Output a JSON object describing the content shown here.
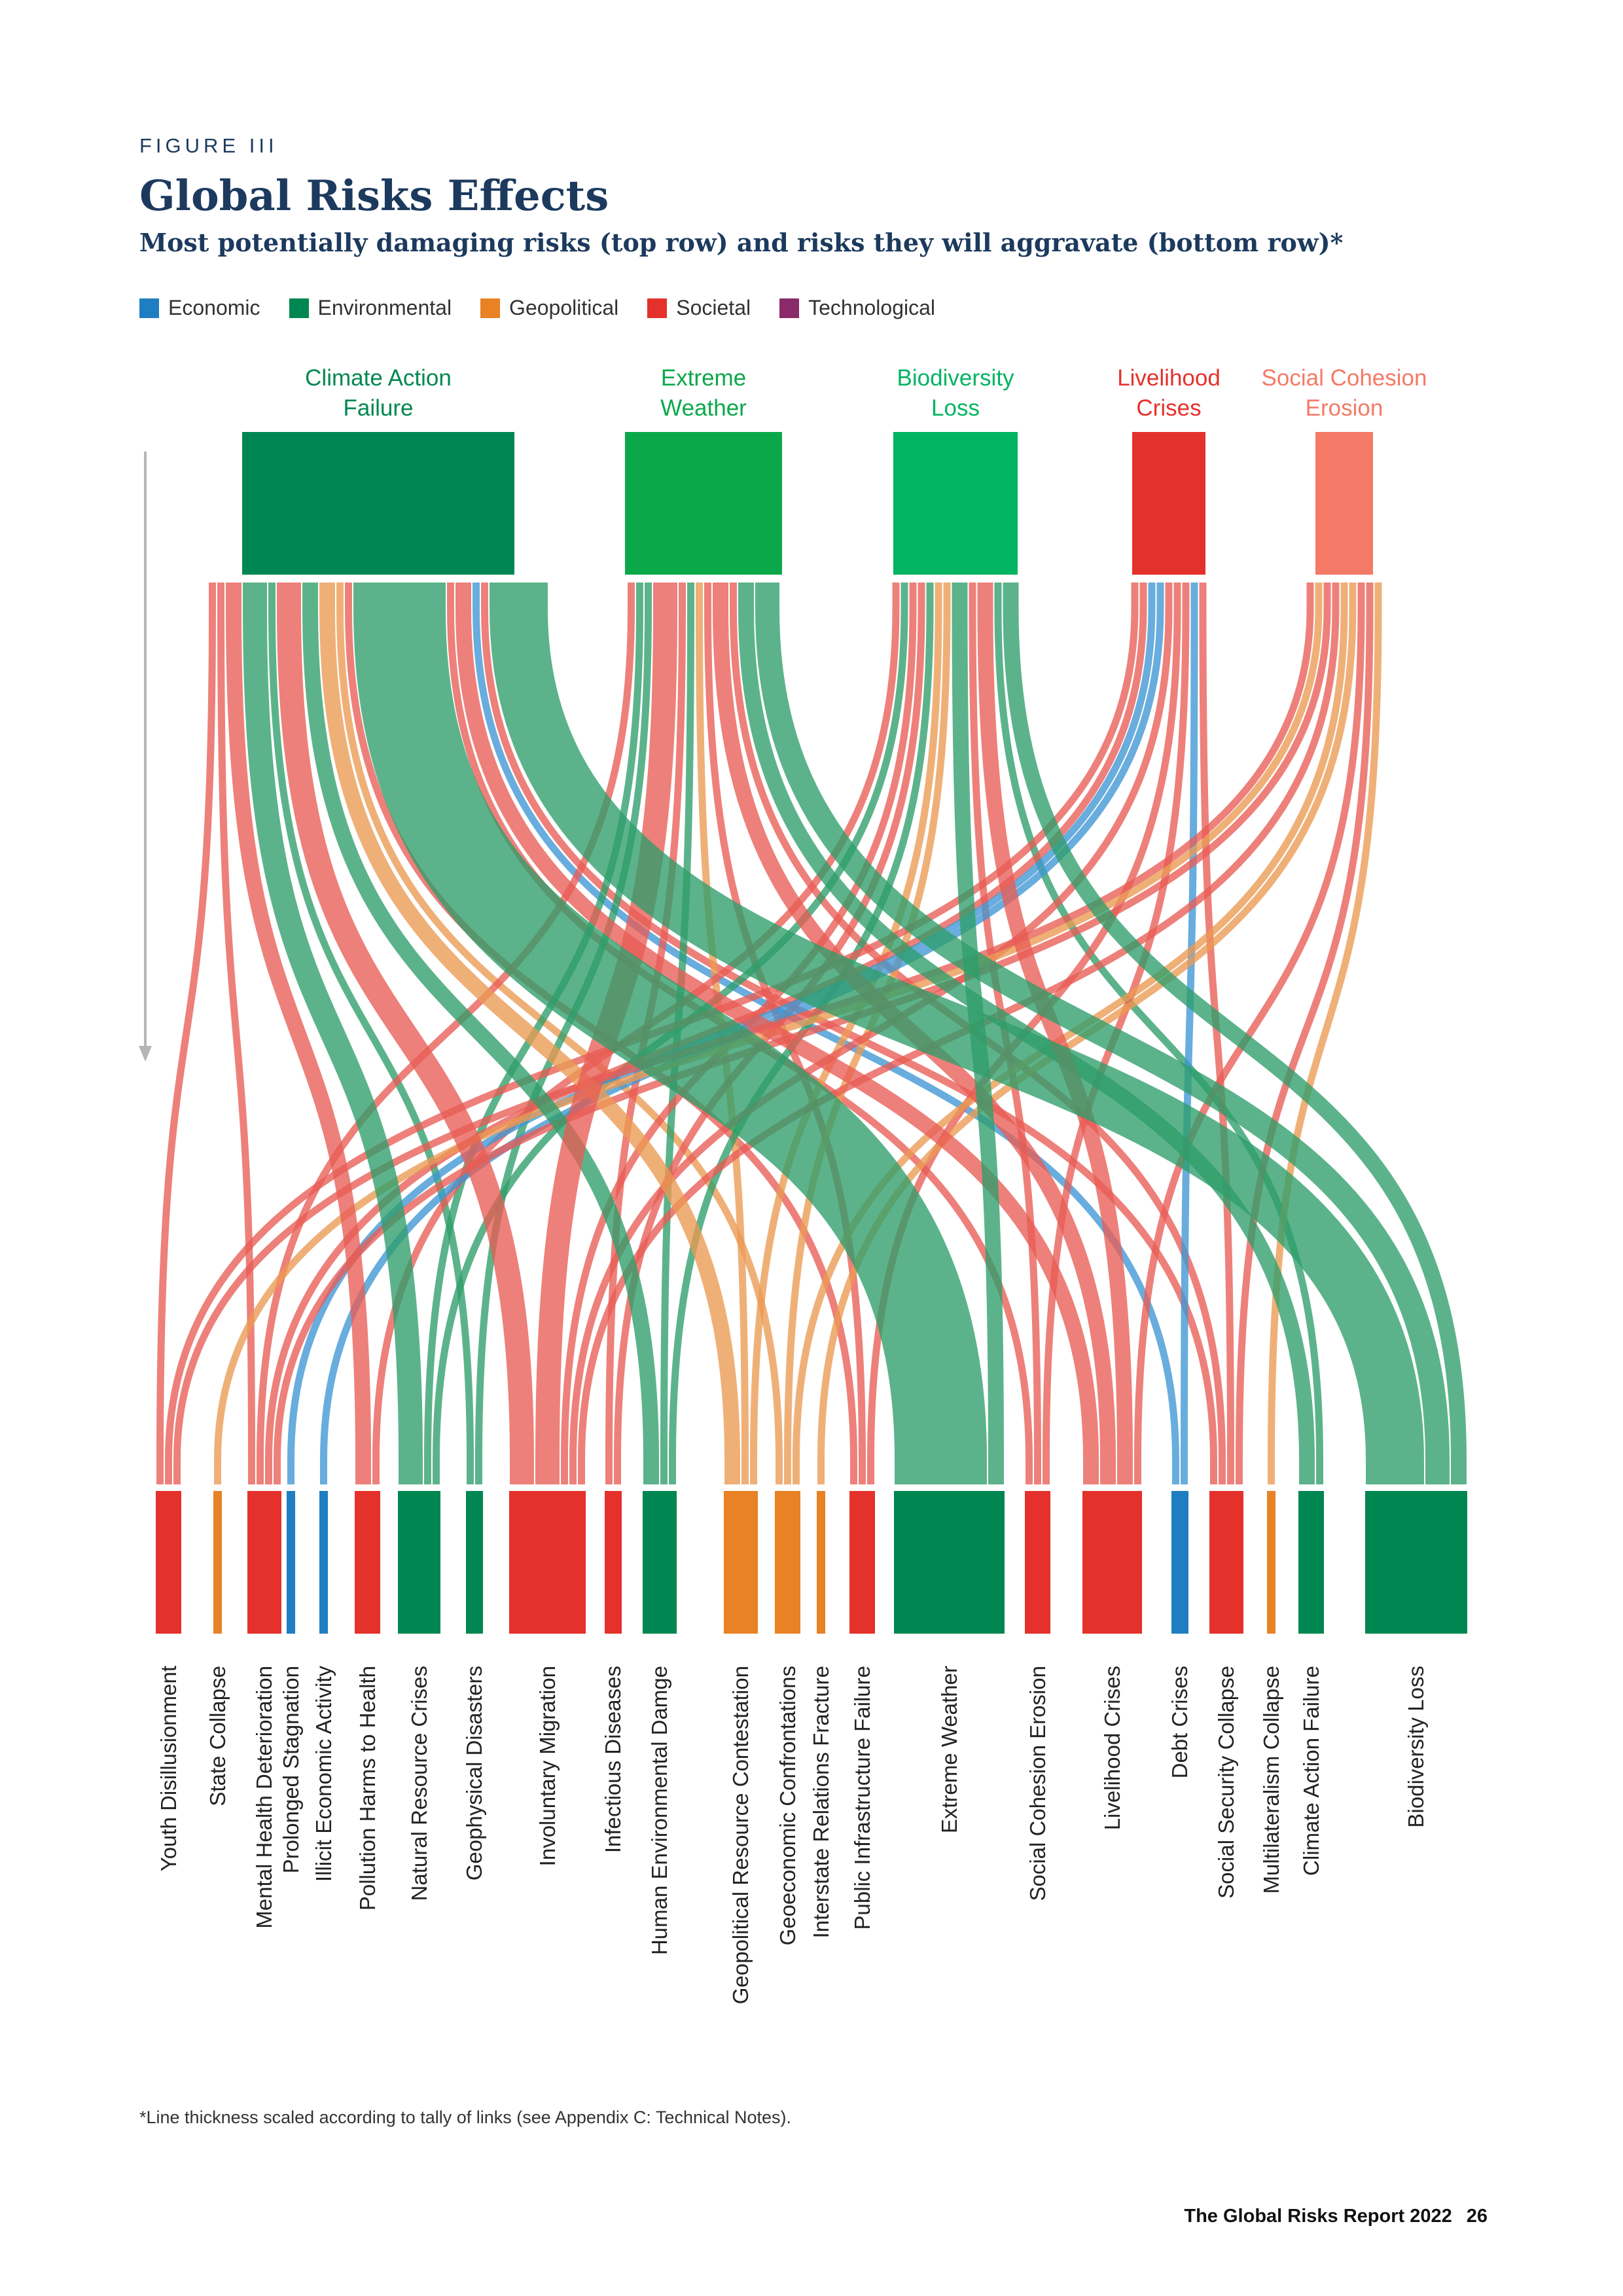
{
  "figure_label": "FIGURE III",
  "title": "Global Risks Effects",
  "subtitle": "Most potentially damaging risks (top row) and risks they will aggravate (bottom row)*",
  "legend": [
    {
      "label": "Economic",
      "color": "#1f7ec1"
    },
    {
      "label": "Environmental",
      "color": "#008751"
    },
    {
      "label": "Geopolitical",
      "color": "#e98125"
    },
    {
      "label": "Societal",
      "color": "#e4312b"
    },
    {
      "label": "Technological",
      "color": "#8a2a6a"
    }
  ],
  "colors": {
    "Economic": "#1f7ec1",
    "Environmental": "#008751",
    "Geopolitical": "#e98125",
    "Societal": "#e4312b",
    "Technological": "#8a2a6a"
  },
  "top_nodes": [
    {
      "id": "T-CAF",
      "label": "Climate Action\nFailure",
      "color": "#008751"
    },
    {
      "id": "T-EW",
      "label": "Extreme\nWeather",
      "color": "#0ba84a"
    },
    {
      "id": "T-BL",
      "label": "Biodiversity\nLoss",
      "color": "#00b462"
    },
    {
      "id": "T-LC",
      "label": "Livelihood\nCrises",
      "color": "#e4312b"
    },
    {
      "id": "T-SCE",
      "label": "Social Cohesion\nErosion",
      "color": "#f47a67"
    }
  ],
  "bottom_nodes": [
    {
      "id": "YD",
      "label": "Youth Disillusionment",
      "category": "Societal"
    },
    {
      "id": "SC",
      "label": "State Collapse",
      "category": "Geopolitical"
    },
    {
      "id": "MHD",
      "label": "Mental Health Deterioration",
      "category": "Societal"
    },
    {
      "id": "PS",
      "label": "Prolonged Stagnation",
      "category": "Economic"
    },
    {
      "id": "IEA",
      "label": "Illicit Economic Activity",
      "category": "Economic"
    },
    {
      "id": "PHH",
      "label": "Pollution Harms to Health",
      "category": "Societal"
    },
    {
      "id": "NRC",
      "label": "Natural Resource Crises",
      "category": "Environmental"
    },
    {
      "id": "GD",
      "label": "Geophysical Disasters",
      "category": "Environmental"
    },
    {
      "id": "IM",
      "label": "Involuntary Migration",
      "category": "Societal"
    },
    {
      "id": "ID",
      "label": "Infectious Diseases",
      "category": "Societal"
    },
    {
      "id": "HED",
      "label": "Human Environmental Damge",
      "category": "Environmental"
    },
    {
      "id": "GRC",
      "label": "Geopolitical Resource Contestation",
      "category": "Geopolitical"
    },
    {
      "id": "GC",
      "label": "Geoeconomic Confrontations",
      "category": "Geopolitical"
    },
    {
      "id": "IRF",
      "label": "Interstate Relations Fracture",
      "category": "Geopolitical"
    },
    {
      "id": "PIF",
      "label": "Public Infrastructure Failure",
      "category": "Societal"
    },
    {
      "id": "EW",
      "label": "Extreme Weather",
      "category": "Environmental"
    },
    {
      "id": "SCE",
      "label": "Social Cohesion Erosion",
      "category": "Societal"
    },
    {
      "id": "LC",
      "label": "Livelihood Crises",
      "category": "Societal"
    },
    {
      "id": "DC",
      "label": "Debt Crises",
      "category": "Economic"
    },
    {
      "id": "SSC",
      "label": "Social Security Collapse",
      "category": "Societal"
    },
    {
      "id": "MC",
      "label": "Multilateralism Collapse",
      "category": "Geopolitical"
    },
    {
      "id": "CAF",
      "label": "Climate Action Failure",
      "category": "Environmental"
    },
    {
      "id": "BL",
      "label": "Biodiversity Loss",
      "category": "Environmental"
    }
  ],
  "links": [
    {
      "source": "T-CAF",
      "target": "YD",
      "value": 1,
      "category": "Societal"
    },
    {
      "source": "T-CAF",
      "target": "MHD",
      "value": 1,
      "category": "Societal"
    },
    {
      "source": "T-CAF",
      "target": "PHH",
      "value": 2,
      "category": "Societal"
    },
    {
      "source": "T-CAF",
      "target": "NRC",
      "value": 3,
      "category": "Environmental"
    },
    {
      "source": "T-CAF",
      "target": "GD",
      "value": 1,
      "category": "Environmental"
    },
    {
      "source": "T-CAF",
      "target": "IM",
      "value": 3,
      "category": "Societal"
    },
    {
      "source": "T-CAF",
      "target": "HED",
      "value": 2,
      "category": "Environmental"
    },
    {
      "source": "T-CAF",
      "target": "GRC",
      "value": 2,
      "category": "Geopolitical"
    },
    {
      "source": "T-CAF",
      "target": "GC",
      "value": 1,
      "category": "Geopolitical"
    },
    {
      "source": "T-CAF",
      "target": "PIF",
      "value": 1,
      "category": "Societal"
    },
    {
      "source": "T-CAF",
      "target": "EW",
      "value": 11,
      "category": "Environmental"
    },
    {
      "source": "T-CAF",
      "target": "SCE",
      "value": 1,
      "category": "Societal"
    },
    {
      "source": "T-CAF",
      "target": "LC",
      "value": 2,
      "category": "Societal"
    },
    {
      "source": "T-CAF",
      "target": "DC",
      "value": 1,
      "category": "Economic"
    },
    {
      "source": "T-CAF",
      "target": "SSC",
      "value": 1,
      "category": "Societal"
    },
    {
      "source": "T-CAF",
      "target": "BL",
      "value": 7,
      "category": "Environmental"
    },
    {
      "source": "T-EW",
      "target": "MHD",
      "value": 1,
      "category": "Societal"
    },
    {
      "source": "T-EW",
      "target": "NRC",
      "value": 1,
      "category": "Environmental"
    },
    {
      "source": "T-EW",
      "target": "GD",
      "value": 1,
      "category": "Environmental"
    },
    {
      "source": "T-EW",
      "target": "IM",
      "value": 3,
      "category": "Societal"
    },
    {
      "source": "T-EW",
      "target": "ID",
      "value": 1,
      "category": "Societal"
    },
    {
      "source": "T-EW",
      "target": "HED",
      "value": 1,
      "category": "Environmental"
    },
    {
      "source": "T-EW",
      "target": "GRC",
      "value": 1,
      "category": "Geopolitical"
    },
    {
      "source": "T-EW",
      "target": "PIF",
      "value": 1,
      "category": "Societal"
    },
    {
      "source": "T-EW",
      "target": "LC",
      "value": 2,
      "category": "Societal"
    },
    {
      "source": "T-EW",
      "target": "SSC",
      "value": 1,
      "category": "Societal"
    },
    {
      "source": "T-EW",
      "target": "CAF",
      "value": 2,
      "category": "Environmental"
    },
    {
      "source": "T-EW",
      "target": "BL",
      "value": 3,
      "category": "Environmental"
    },
    {
      "source": "T-BL",
      "target": "PHH",
      "value": 1,
      "category": "Societal"
    },
    {
      "source": "T-BL",
      "target": "NRC",
      "value": 1,
      "category": "Environmental"
    },
    {
      "source": "T-BL",
      "target": "IM",
      "value": 1,
      "category": "Societal"
    },
    {
      "source": "T-BL",
      "target": "ID",
      "value": 1,
      "category": "Societal"
    },
    {
      "source": "T-BL",
      "target": "HED",
      "value": 1,
      "category": "Environmental"
    },
    {
      "source": "T-BL",
      "target": "GRC",
      "value": 1,
      "category": "Geopolitical"
    },
    {
      "source": "T-BL",
      "target": "GC",
      "value": 1,
      "category": "Geopolitical"
    },
    {
      "source": "T-BL",
      "target": "EW",
      "value": 2,
      "category": "Environmental"
    },
    {
      "source": "T-BL",
      "target": "SCE",
      "value": 1,
      "category": "Societal"
    },
    {
      "source": "T-BL",
      "target": "LC",
      "value": 2,
      "category": "Societal"
    },
    {
      "source": "T-BL",
      "target": "CAF",
      "value": 1,
      "category": "Environmental"
    },
    {
      "source": "T-BL",
      "target": "BL",
      "value": 2,
      "category": "Environmental"
    },
    {
      "source": "T-LC",
      "target": "YD",
      "value": 1,
      "category": "Societal"
    },
    {
      "source": "T-LC",
      "target": "MHD",
      "value": 1,
      "category": "Societal"
    },
    {
      "source": "T-LC",
      "target": "PS",
      "value": 1,
      "category": "Economic"
    },
    {
      "source": "T-LC",
      "target": "IEA",
      "value": 1,
      "category": "Economic"
    },
    {
      "source": "T-LC",
      "target": "IM",
      "value": 1,
      "category": "Societal"
    },
    {
      "source": "T-LC",
      "target": "PIF",
      "value": 1,
      "category": "Societal"
    },
    {
      "source": "T-LC",
      "target": "SCE",
      "value": 1,
      "category": "Societal"
    },
    {
      "source": "T-LC",
      "target": "DC",
      "value": 1,
      "category": "Economic"
    },
    {
      "source": "T-LC",
      "target": "SSC",
      "value": 1,
      "category": "Societal"
    },
    {
      "source": "T-SCE",
      "target": "YD",
      "value": 1,
      "category": "Societal"
    },
    {
      "source": "T-SCE",
      "target": "SC",
      "value": 1,
      "category": "Geopolitical"
    },
    {
      "source": "T-SCE",
      "target": "MHD",
      "value": 1,
      "category": "Societal"
    },
    {
      "source": "T-SCE",
      "target": "IM",
      "value": 1,
      "category": "Societal"
    },
    {
      "source": "T-SCE",
      "target": "GC",
      "value": 1,
      "category": "Geopolitical"
    },
    {
      "source": "T-SCE",
      "target": "IRF",
      "value": 1,
      "category": "Geopolitical"
    },
    {
      "source": "T-SCE",
      "target": "LC",
      "value": 1,
      "category": "Societal"
    },
    {
      "source": "T-SCE",
      "target": "SSC",
      "value": 1,
      "category": "Societal"
    },
    {
      "source": "T-SCE",
      "target": "MC",
      "value": 1,
      "category": "Geopolitical"
    }
  ],
  "footnote": "*Line thickness scaled according to tally of links (see Appendix C: Technical Notes).",
  "footer": {
    "report": "The Global Risks Report 2022",
    "page": "26"
  }
}
